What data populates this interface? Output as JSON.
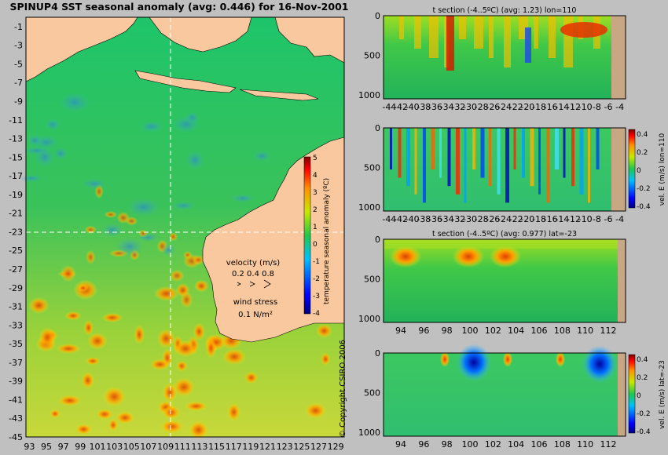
{
  "main_title": "SPINUP4 SST seasonal anomaly (avg: 0.446) for 16-Nov-2001",
  "copyright": "© Copyright CSIRO 2006",
  "map": {
    "y_ticks": [
      "-1",
      "-3",
      "-5",
      "-7",
      "-9",
      "-11",
      "-13",
      "-15",
      "-17",
      "-19",
      "-21",
      "-23",
      "-25",
      "-27",
      "-29",
      "-31",
      "-33",
      "-35",
      "-37",
      "-39",
      "-41",
      "-43",
      "-45"
    ],
    "x_ticks": [
      "93",
      "95",
      "97",
      "99",
      "101",
      "103",
      "105",
      "107",
      "109",
      "111",
      "113",
      "115",
      "117",
      "119",
      "121",
      "123",
      "125",
      "127",
      "129"
    ],
    "section_lines": {
      "lon": 110,
      "lat": -23
    },
    "colorbar": {
      "label": "temperature seasonal anomaly (ºC)",
      "ticks": [
        "5",
        "4",
        "3",
        "2",
        "1",
        "0",
        "-1",
        "-2",
        "-3",
        "-4"
      ],
      "range": [
        -4,
        5
      ]
    },
    "velocity_legend": {
      "title": "velocity (m/s)",
      "values": "0.2 0.4 0.8"
    },
    "wind_legend": {
      "title": "wind stress",
      "value": "0.1 N/m²"
    },
    "colors": {
      "land": "#f9c89f",
      "ocean_mid": "#22c84a"
    }
  },
  "panels": [
    {
      "title": "t section (-4..5ºC) (avg: 1.23) lon=110",
      "colorbar_label": "",
      "y_ticks": [
        "0",
        "500",
        "1000"
      ],
      "x_ticks": [
        "-44",
        "-42",
        "-40",
        "-38",
        "-36",
        "-34",
        "-32",
        "-30",
        "-28",
        "-26",
        "-24",
        "-22",
        "-20",
        "-18",
        "-16",
        "-14",
        "-12",
        "-10",
        "-8",
        "-6",
        "-4"
      ]
    },
    {
      "title": "",
      "colorbar_label": "vel. E (m/s) lon=110",
      "cbar_ticks": [
        "0.4",
        "0.2",
        "0",
        "-0.2",
        "-0.4"
      ],
      "y_ticks": [
        "0",
        "500",
        "1000"
      ],
      "x_ticks": [
        "-44",
        "-42",
        "-40",
        "-38",
        "-36",
        "-34",
        "-32",
        "-30",
        "-28",
        "-26",
        "-24",
        "-22",
        "-20",
        "-18",
        "-16",
        "-14",
        "-12",
        "-10",
        "-8",
        "-6",
        "-4"
      ]
    },
    {
      "title": "t section (-4..5ºC) (avg: 0.977) lat=-23",
      "colorbar_label": "",
      "y_ticks": [
        "0",
        "500",
        "1000"
      ],
      "x_ticks": [
        "94",
        "96",
        "98",
        "100",
        "102",
        "104",
        "106",
        "108",
        "110",
        "112"
      ]
    },
    {
      "title": "",
      "colorbar_label": "vel. E (m/s) lat=-23",
      "cbar_ticks": [
        "0.4",
        "0.2",
        "0",
        "-0.2",
        "-0.4"
      ],
      "y_ticks": [
        "0",
        "500",
        "1000"
      ],
      "x_ticks": [
        "94",
        "96",
        "98",
        "100",
        "102",
        "104",
        "106",
        "108",
        "110",
        "112"
      ]
    }
  ],
  "chart_data": [
    {
      "type": "heatmap",
      "title": "SPINUP4 SST seasonal anomaly (avg: 0.446) for 16-Nov-2001",
      "xlabel": "",
      "ylabel": "",
      "xlim": [
        93,
        130
      ],
      "ylim": [
        -45,
        0
      ],
      "colorbar_range": [
        -4,
        5
      ],
      "avg": 0.446
    },
    {
      "type": "heatmap",
      "title": "t section (-4..5ºC) (avg: 1.23) lon=110",
      "xlim": [
        -45,
        -3
      ],
      "ylim": [
        1050,
        0
      ],
      "avg": 1.23
    },
    {
      "type": "heatmap",
      "title": "",
      "colorbar_label": "vel. E (m/s) lon=110",
      "xlim": [
        -45,
        -3
      ],
      "ylim": [
        1050,
        0
      ],
      "colorbar_range": [
        -0.4,
        0.4
      ]
    },
    {
      "type": "heatmap",
      "title": "t section (-4..5ºC) (avg: 0.977) lat=-23",
      "xlim": [
        92.5,
        113.5
      ],
      "ylim": [
        1050,
        0
      ],
      "avg": 0.977
    },
    {
      "type": "heatmap",
      "title": "",
      "colorbar_label": "vel. E (m/s) lat=-23",
      "xlim": [
        92.5,
        113.5
      ],
      "ylim": [
        1050,
        0
      ],
      "colorbar_range": [
        -0.4,
        0.4
      ]
    }
  ]
}
